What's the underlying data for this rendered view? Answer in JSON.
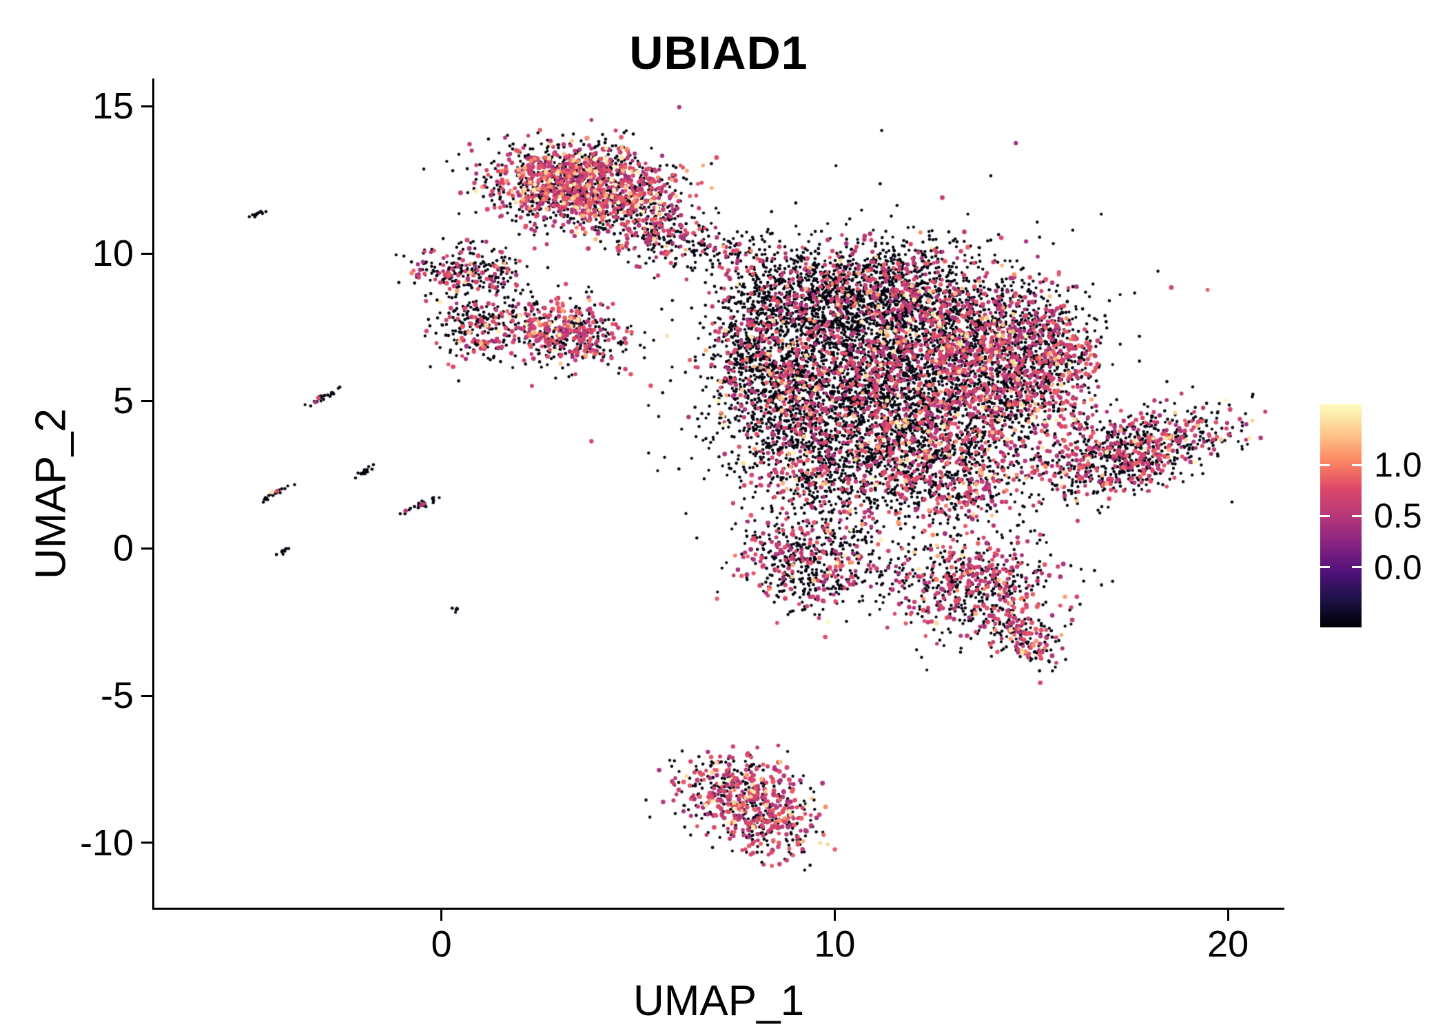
{
  "title": "UBIAD1",
  "axes": {
    "x": {
      "label": "UMAP_1",
      "range": [
        -7.3,
        21.4
      ],
      "ticks": [
        0,
        10,
        20
      ],
      "tick_labels": [
        "0",
        "10",
        "20"
      ]
    },
    "y": {
      "label": "UMAP_2",
      "range": [
        -12.2,
        15.9
      ],
      "ticks": [
        15,
        10,
        5,
        0,
        -5,
        -10
      ],
      "tick_labels": [
        "15",
        "10",
        "5",
        "0",
        "-5",
        "-10"
      ]
    }
  },
  "legend": {
    "items": [
      {
        "label": "1.0",
        "fraction_from_top": 0.273
      },
      {
        "label": "0.5",
        "fraction_from_top": 0.5
      },
      {
        "label": "0.0",
        "fraction_from_top": 0.731
      }
    ]
  },
  "colors": {
    "background": "#ffffff",
    "axis": "#000000",
    "text": "#000000",
    "zero_point": "#050409",
    "mid_point": "#b73779",
    "high_point": "#fc8961"
  },
  "chart_data": {
    "type": "scatter",
    "title": "UBIAD1",
    "xlabel": "UMAP_1",
    "ylabel": "UMAP_2",
    "xlim": [
      -7.3,
      21.4
    ],
    "ylim": [
      -12.2,
      15.9
    ],
    "grid": false,
    "legend_position": "right",
    "seed": 42,
    "expression_value_max": 1.6,
    "color_scale": {
      "name": "magma",
      "stops": [
        [
          0.0,
          "#000004"
        ],
        [
          0.125,
          "#1d1147"
        ],
        [
          0.25,
          "#51127c"
        ],
        [
          0.375,
          "#872381"
        ],
        [
          0.5,
          "#b73779"
        ],
        [
          0.625,
          "#de4968"
        ],
        [
          0.75,
          "#fc8961"
        ],
        [
          0.875,
          "#fec98d"
        ],
        [
          1.0,
          "#fcfdbf"
        ]
      ]
    },
    "clusters": [
      {
        "name": "top-main",
        "cx": 3.55,
        "cy": 12.3,
        "sx": 1.15,
        "sy": 0.7,
        "rot": -8,
        "n": 1500,
        "f0": 0.5,
        "fmid": 0.42,
        "fhigh": 0.08
      },
      {
        "name": "top-tail",
        "cx": 5.4,
        "cy": 10.8,
        "sx": 0.75,
        "sy": 0.6,
        "rot": -30,
        "n": 260,
        "f0": 0.68,
        "fmid": 0.29,
        "fhigh": 0.03
      },
      {
        "name": "top-bridge",
        "cx": 7.0,
        "cy": 10.15,
        "sx": 0.85,
        "sy": 0.3,
        "rot": -10,
        "n": 90,
        "f0": 0.85,
        "fmid": 0.14,
        "fhigh": 0.01
      },
      {
        "name": "left-upper-small",
        "cx": 0.55,
        "cy": 9.45,
        "sx": 0.7,
        "sy": 0.45,
        "rot": 0,
        "n": 230,
        "f0": 0.74,
        "fmid": 0.24,
        "fhigh": 0.02
      },
      {
        "name": "sparse-left",
        "cx": 1.6,
        "cy": 8.6,
        "sx": 0.5,
        "sy": 0.6,
        "rot": 0,
        "n": 40,
        "f0": 0.9,
        "fmid": 0.1,
        "fhigh": 0.0
      },
      {
        "name": "left-mid-small",
        "cx": 0.8,
        "cy": 7.5,
        "sx": 0.5,
        "sy": 0.55,
        "rot": 0,
        "n": 190,
        "f0": 0.66,
        "fmid": 0.31,
        "fhigh": 0.03
      },
      {
        "name": "mid-pink",
        "cx": 3.1,
        "cy": 7.35,
        "sx": 0.85,
        "sy": 0.55,
        "rot": -10,
        "n": 470,
        "f0": 0.5,
        "fmid": 0.44,
        "fhigh": 0.06
      },
      {
        "name": "blob-left-edge",
        "cx": 7.95,
        "cy": 6.9,
        "sx": 0.55,
        "sy": 0.95,
        "rot": 0,
        "n": 260,
        "f0": 0.8,
        "fmid": 0.18,
        "fhigh": 0.02
      },
      {
        "name": "blob-nw",
        "cx": 9.2,
        "cy": 8.4,
        "sx": 1.15,
        "sy": 0.95,
        "rot": 0,
        "n": 900,
        "f0": 0.84,
        "fmid": 0.15,
        "fhigh": 0.01
      },
      {
        "name": "blob-n",
        "cx": 11.3,
        "cy": 8.8,
        "sx": 1.25,
        "sy": 0.85,
        "rot": 0,
        "n": 900,
        "f0": 0.8,
        "fmid": 0.18,
        "fhigh": 0.02
      },
      {
        "name": "blob-ne",
        "cx": 13.1,
        "cy": 7.1,
        "sx": 1.2,
        "sy": 1.15,
        "rot": 0,
        "n": 1100,
        "f0": 0.68,
        "fmid": 0.28,
        "fhigh": 0.04
      },
      {
        "name": "blob-center",
        "cx": 10.6,
        "cy": 6.0,
        "sx": 1.5,
        "sy": 1.15,
        "rot": 0,
        "n": 1250,
        "f0": 0.8,
        "fmid": 0.18,
        "fhigh": 0.02
      },
      {
        "name": "blob-sw",
        "cx": 8.7,
        "cy": 4.9,
        "sx": 0.95,
        "sy": 1.15,
        "rot": 0,
        "n": 700,
        "f0": 0.76,
        "fmid": 0.22,
        "fhigh": 0.02
      },
      {
        "name": "blob-s",
        "cx": 12.2,
        "cy": 4.2,
        "sx": 1.35,
        "sy": 0.95,
        "rot": 0,
        "n": 880,
        "f0": 0.72,
        "fmid": 0.25,
        "fhigh": 0.03
      },
      {
        "name": "blob-e",
        "cx": 14.8,
        "cy": 5.6,
        "sx": 0.85,
        "sy": 1.3,
        "rot": 0,
        "n": 700,
        "f0": 0.62,
        "fmid": 0.33,
        "fhigh": 0.05
      },
      {
        "name": "blob-e-strip",
        "cx": 15.7,
        "cy": 6.9,
        "sx": 0.5,
        "sy": 1.1,
        "rot": 15,
        "n": 280,
        "f0": 0.55,
        "fmid": 0.4,
        "fhigh": 0.05
      },
      {
        "name": "blob-s2",
        "cx": 10.1,
        "cy": 2.7,
        "sx": 1.15,
        "sy": 0.95,
        "rot": 0,
        "n": 600,
        "f0": 0.76,
        "fmid": 0.21,
        "fhigh": 0.03
      },
      {
        "name": "blob-s3",
        "cx": 12.9,
        "cy": 2.3,
        "sx": 1.0,
        "sy": 0.8,
        "rot": 0,
        "n": 450,
        "f0": 0.7,
        "fmid": 0.26,
        "fhigh": 0.04
      },
      {
        "name": "blob-noise",
        "cx": 11.4,
        "cy": 5.6,
        "sx": 2.9,
        "sy": 2.4,
        "rot": 0,
        "n": 500,
        "f0": 0.85,
        "fmid": 0.13,
        "fhigh": 0.02
      },
      {
        "name": "right-wing",
        "cx": 17.6,
        "cy": 3.3,
        "sx": 1.35,
        "sy": 0.6,
        "rot": 22,
        "n": 820,
        "f0": 0.63,
        "fmid": 0.33,
        "fhigh": 0.04
      },
      {
        "name": "low-mid",
        "cx": 9.5,
        "cy": -0.4,
        "sx": 0.95,
        "sy": 0.8,
        "rot": 10,
        "n": 560,
        "f0": 0.68,
        "fmid": 0.28,
        "fhigh": 0.04
      },
      {
        "name": "low-right",
        "cx": 13.5,
        "cy": -1.3,
        "sx": 1.05,
        "sy": 0.85,
        "rot": 0,
        "n": 620,
        "f0": 0.62,
        "fmid": 0.33,
        "fhigh": 0.05
      },
      {
        "name": "low-right-tail",
        "cx": 14.8,
        "cy": -2.9,
        "sx": 0.45,
        "sy": 0.65,
        "rot": 35,
        "n": 160,
        "f0": 0.55,
        "fmid": 0.4,
        "fhigh": 0.05
      },
      {
        "name": "bottom-upper",
        "cx": 7.5,
        "cy": -8.1,
        "sx": 0.85,
        "sy": 0.55,
        "rot": -5,
        "n": 360,
        "f0": 0.52,
        "fmid": 0.42,
        "fhigh": 0.06
      },
      {
        "name": "bottom-lower",
        "cx": 8.3,
        "cy": -9.3,
        "sx": 0.7,
        "sy": 0.55,
        "rot": -20,
        "n": 300,
        "f0": 0.45,
        "fmid": 0.47,
        "fhigh": 0.08
      },
      {
        "name": "streak-1",
        "cx": -4.6,
        "cy": 11.4,
        "sx": 0.12,
        "sy": 0.03,
        "rot": 40,
        "n": 14,
        "f0": 1.0,
        "fmid": 0.0,
        "fhigh": 0.0
      },
      {
        "name": "streak-2",
        "cx": -3.0,
        "cy": 5.15,
        "sx": 0.22,
        "sy": 0.04,
        "rot": 35,
        "n": 26,
        "f0": 0.95,
        "fmid": 0.05,
        "fhigh": 0.0
      },
      {
        "name": "streak-3",
        "cx": -1.95,
        "cy": 2.6,
        "sx": 0.18,
        "sy": 0.04,
        "rot": 35,
        "n": 20,
        "f0": 0.95,
        "fmid": 0.05,
        "fhigh": 0.0
      },
      {
        "name": "streak-4",
        "cx": -4.25,
        "cy": 1.85,
        "sx": 0.2,
        "sy": 0.05,
        "rot": 35,
        "n": 24,
        "f0": 0.82,
        "fmid": 0.1,
        "fhigh": 0.08
      },
      {
        "name": "streak-5",
        "cx": -0.55,
        "cy": 1.45,
        "sx": 0.24,
        "sy": 0.05,
        "rot": 30,
        "n": 26,
        "f0": 0.88,
        "fmid": 0.12,
        "fhigh": 0.0
      },
      {
        "name": "streak-6",
        "cx": -4.05,
        "cy": -0.1,
        "sx": 0.1,
        "sy": 0.04,
        "rot": 35,
        "n": 10,
        "f0": 1.0,
        "fmid": 0.0,
        "fhigh": 0.0
      },
      {
        "name": "dot-1",
        "cx": 0.35,
        "cy": -2.1,
        "sx": 0.06,
        "sy": 0.05,
        "rot": 0,
        "n": 6,
        "f0": 1.0,
        "fmid": 0.0,
        "fhigh": 0.0
      }
    ]
  }
}
